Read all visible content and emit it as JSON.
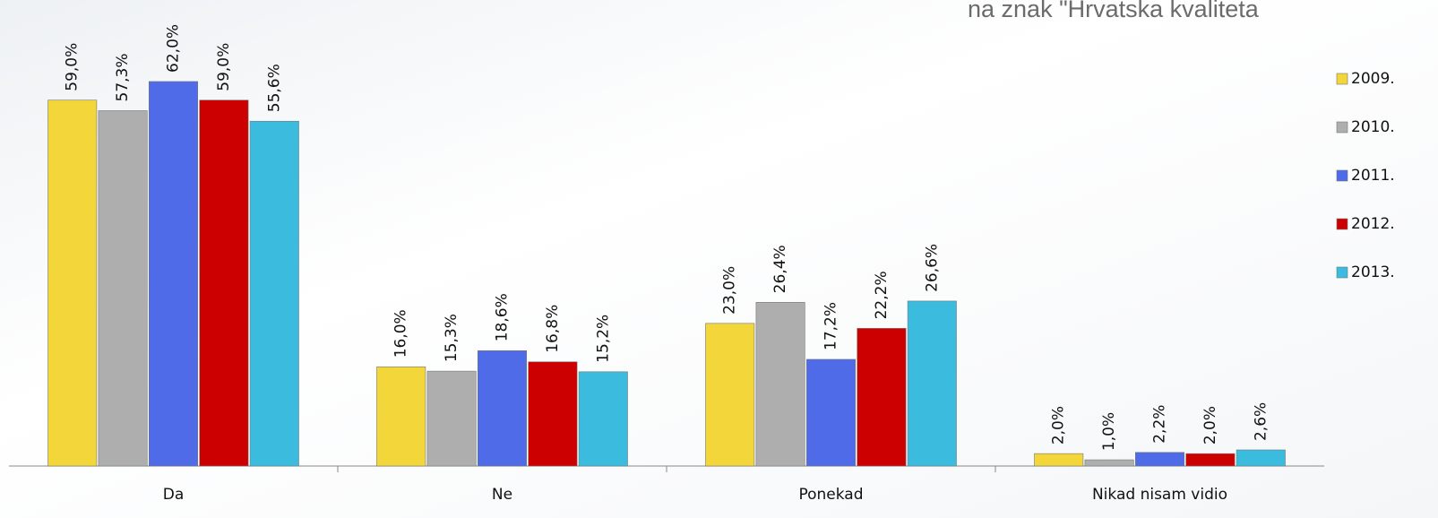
{
  "chart_data": {
    "type": "bar",
    "title": "na znak \"Hrvatska kvaliteta",
    "categories": [
      "Da",
      "Ne",
      "Ponekad",
      "Nikad nisam vidio"
    ],
    "series": [
      {
        "name": "2009.",
        "color": "#f2d63a",
        "values": [
          59.0,
          16.0,
          23.0,
          2.0
        ],
        "value_labels": [
          "59,0%",
          "16,0%",
          "23,0%",
          "2,0%"
        ]
      },
      {
        "name": "2010.",
        "color": "#aeaeae",
        "values": [
          57.3,
          15.3,
          26.4,
          1.0
        ],
        "value_labels": [
          "57,3%",
          "15,3%",
          "26,4%",
          "1,0%"
        ]
      },
      {
        "name": "2011.",
        "color": "#4f6be8",
        "values": [
          62.0,
          18.6,
          17.2,
          2.2
        ],
        "value_labels": [
          "62,0%",
          "18,6%",
          "17,2%",
          "2,2%"
        ]
      },
      {
        "name": "2012.",
        "color": "#cc0000",
        "values": [
          59.0,
          16.8,
          22.2,
          2.0
        ],
        "value_labels": [
          "59,0%",
          "16,8%",
          "22,2%",
          "2,0%"
        ]
      },
      {
        "name": "2013.",
        "color": "#3bbcdf",
        "values": [
          55.6,
          15.2,
          26.6,
          2.6
        ],
        "value_labels": [
          "55,6%",
          "15,2%",
          "26,6%",
          "2,6%"
        ]
      }
    ],
    "legend": "right"
  }
}
